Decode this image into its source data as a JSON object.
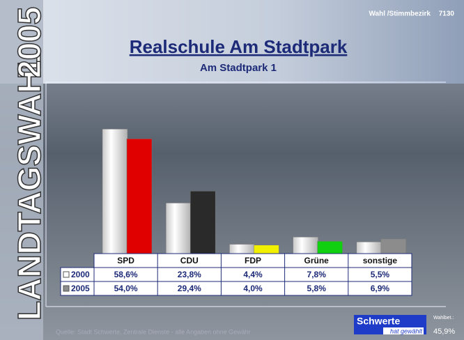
{
  "chart_data": {
    "type": "bar",
    "title": "Realschule Am Stadtpark",
    "subtitle": "Am Stadtpark 1",
    "categories": [
      "SPD",
      "CDU",
      "FDP",
      "Grüne",
      "sonstige"
    ],
    "series": [
      {
        "name": "2000",
        "color": "#e4e4e4",
        "values": [
          58.6,
          23.8,
          4.4,
          7.8,
          5.5
        ],
        "value_labels": [
          "58,6%",
          "23,8%",
          "4,4%",
          "7,8%",
          "5,5%"
        ]
      },
      {
        "name": "2005",
        "color": "#8c8c8c",
        "colors": [
          "#e00000",
          "#2a2a2a",
          "#f0f000",
          "#10d010",
          "#8c8c8c"
        ],
        "values": [
          54.0,
          29.4,
          4.0,
          5.8,
          6.9
        ],
        "value_labels": [
          "54,0%",
          "29,4%",
          "4,0%",
          "5,8%",
          "6,9%"
        ]
      }
    ]
  },
  "page": {
    "sidebar_label": "LANDTAGSWAHL",
    "sidebar_year": "2005",
    "district_label": "Wahl /Stimmbezirk",
    "district_number": "7130",
    "source": "Quelle: Stadt Schwerte, Zentrale Dienste - alle Angaben ohne Gewähr",
    "logo": "Schwerte",
    "logo_tagline": "hat gewählt",
    "turnout_label": "Wahlbet.:",
    "turnout_value": "45,9%"
  }
}
